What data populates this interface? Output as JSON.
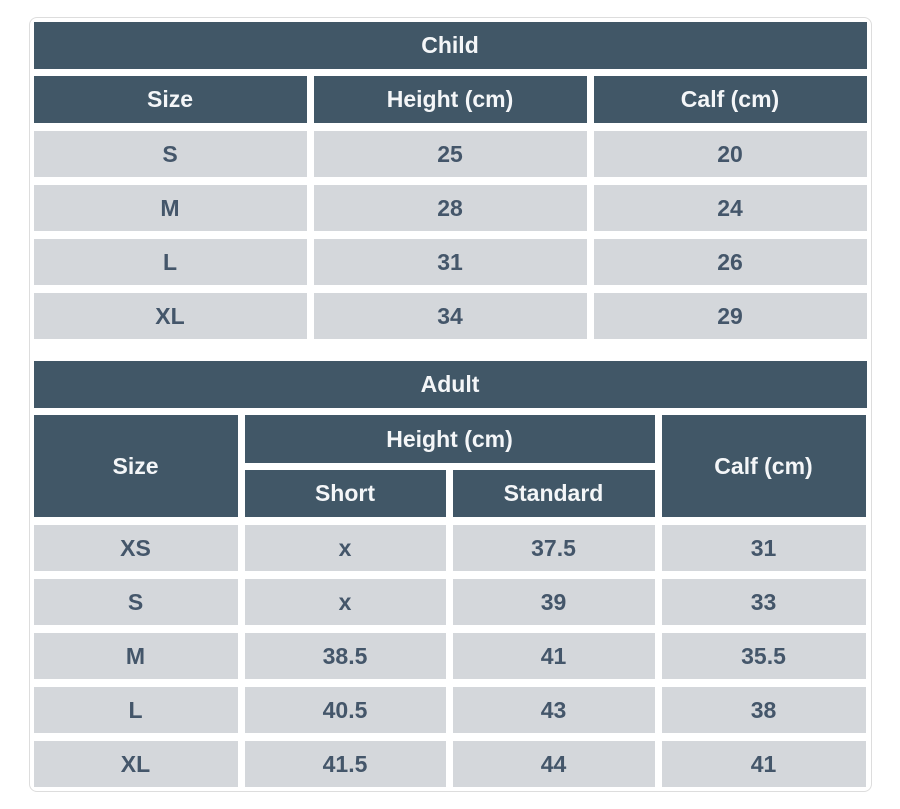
{
  "colors": {
    "header_bg": "#415767",
    "row_bg": "#d4d7db",
    "header_text": "#f4f6f8",
    "row_text": "#44566a",
    "frame_border": "#dddddd",
    "page_bg": "#ffffff"
  },
  "child_table": {
    "title": "Child",
    "columns": [
      "Size",
      "Height (cm)",
      "Calf (cm)"
    ],
    "rows": [
      [
        "S",
        "25",
        "20"
      ],
      [
        "M",
        "28",
        "24"
      ],
      [
        "L",
        "31",
        "26"
      ],
      [
        "XL",
        "34",
        "29"
      ]
    ]
  },
  "adult_table": {
    "title": "Adult",
    "header": {
      "size": "Size",
      "height_group": "Height (cm)",
      "short": "Short",
      "standard": "Standard",
      "calf": "Calf (cm)"
    },
    "rows": [
      [
        "XS",
        "x",
        "37.5",
        "31"
      ],
      [
        "S",
        "x",
        "39",
        "33"
      ],
      [
        "M",
        "38.5",
        "41",
        "35.5"
      ],
      [
        "L",
        "40.5",
        "43",
        "38"
      ],
      [
        "XL",
        "41.5",
        "44",
        "41"
      ]
    ]
  },
  "chart_data": [
    {
      "type": "table",
      "title": "Child",
      "columns": [
        "Size",
        "Height (cm)",
        "Calf (cm)"
      ],
      "rows": [
        [
          "S",
          25,
          20
        ],
        [
          "M",
          28,
          24
        ],
        [
          "L",
          31,
          26
        ],
        [
          "XL",
          34,
          29
        ]
      ]
    },
    {
      "type": "table",
      "title": "Adult",
      "columns": [
        "Size",
        "Height (cm) - Short",
        "Height (cm) - Standard",
        "Calf (cm)"
      ],
      "rows": [
        [
          "XS",
          "x",
          37.5,
          31
        ],
        [
          "S",
          "x",
          39,
          33
        ],
        [
          "M",
          38.5,
          41,
          35.5
        ],
        [
          "L",
          40.5,
          43,
          38
        ],
        [
          "XL",
          41.5,
          44,
          41
        ]
      ]
    }
  ]
}
